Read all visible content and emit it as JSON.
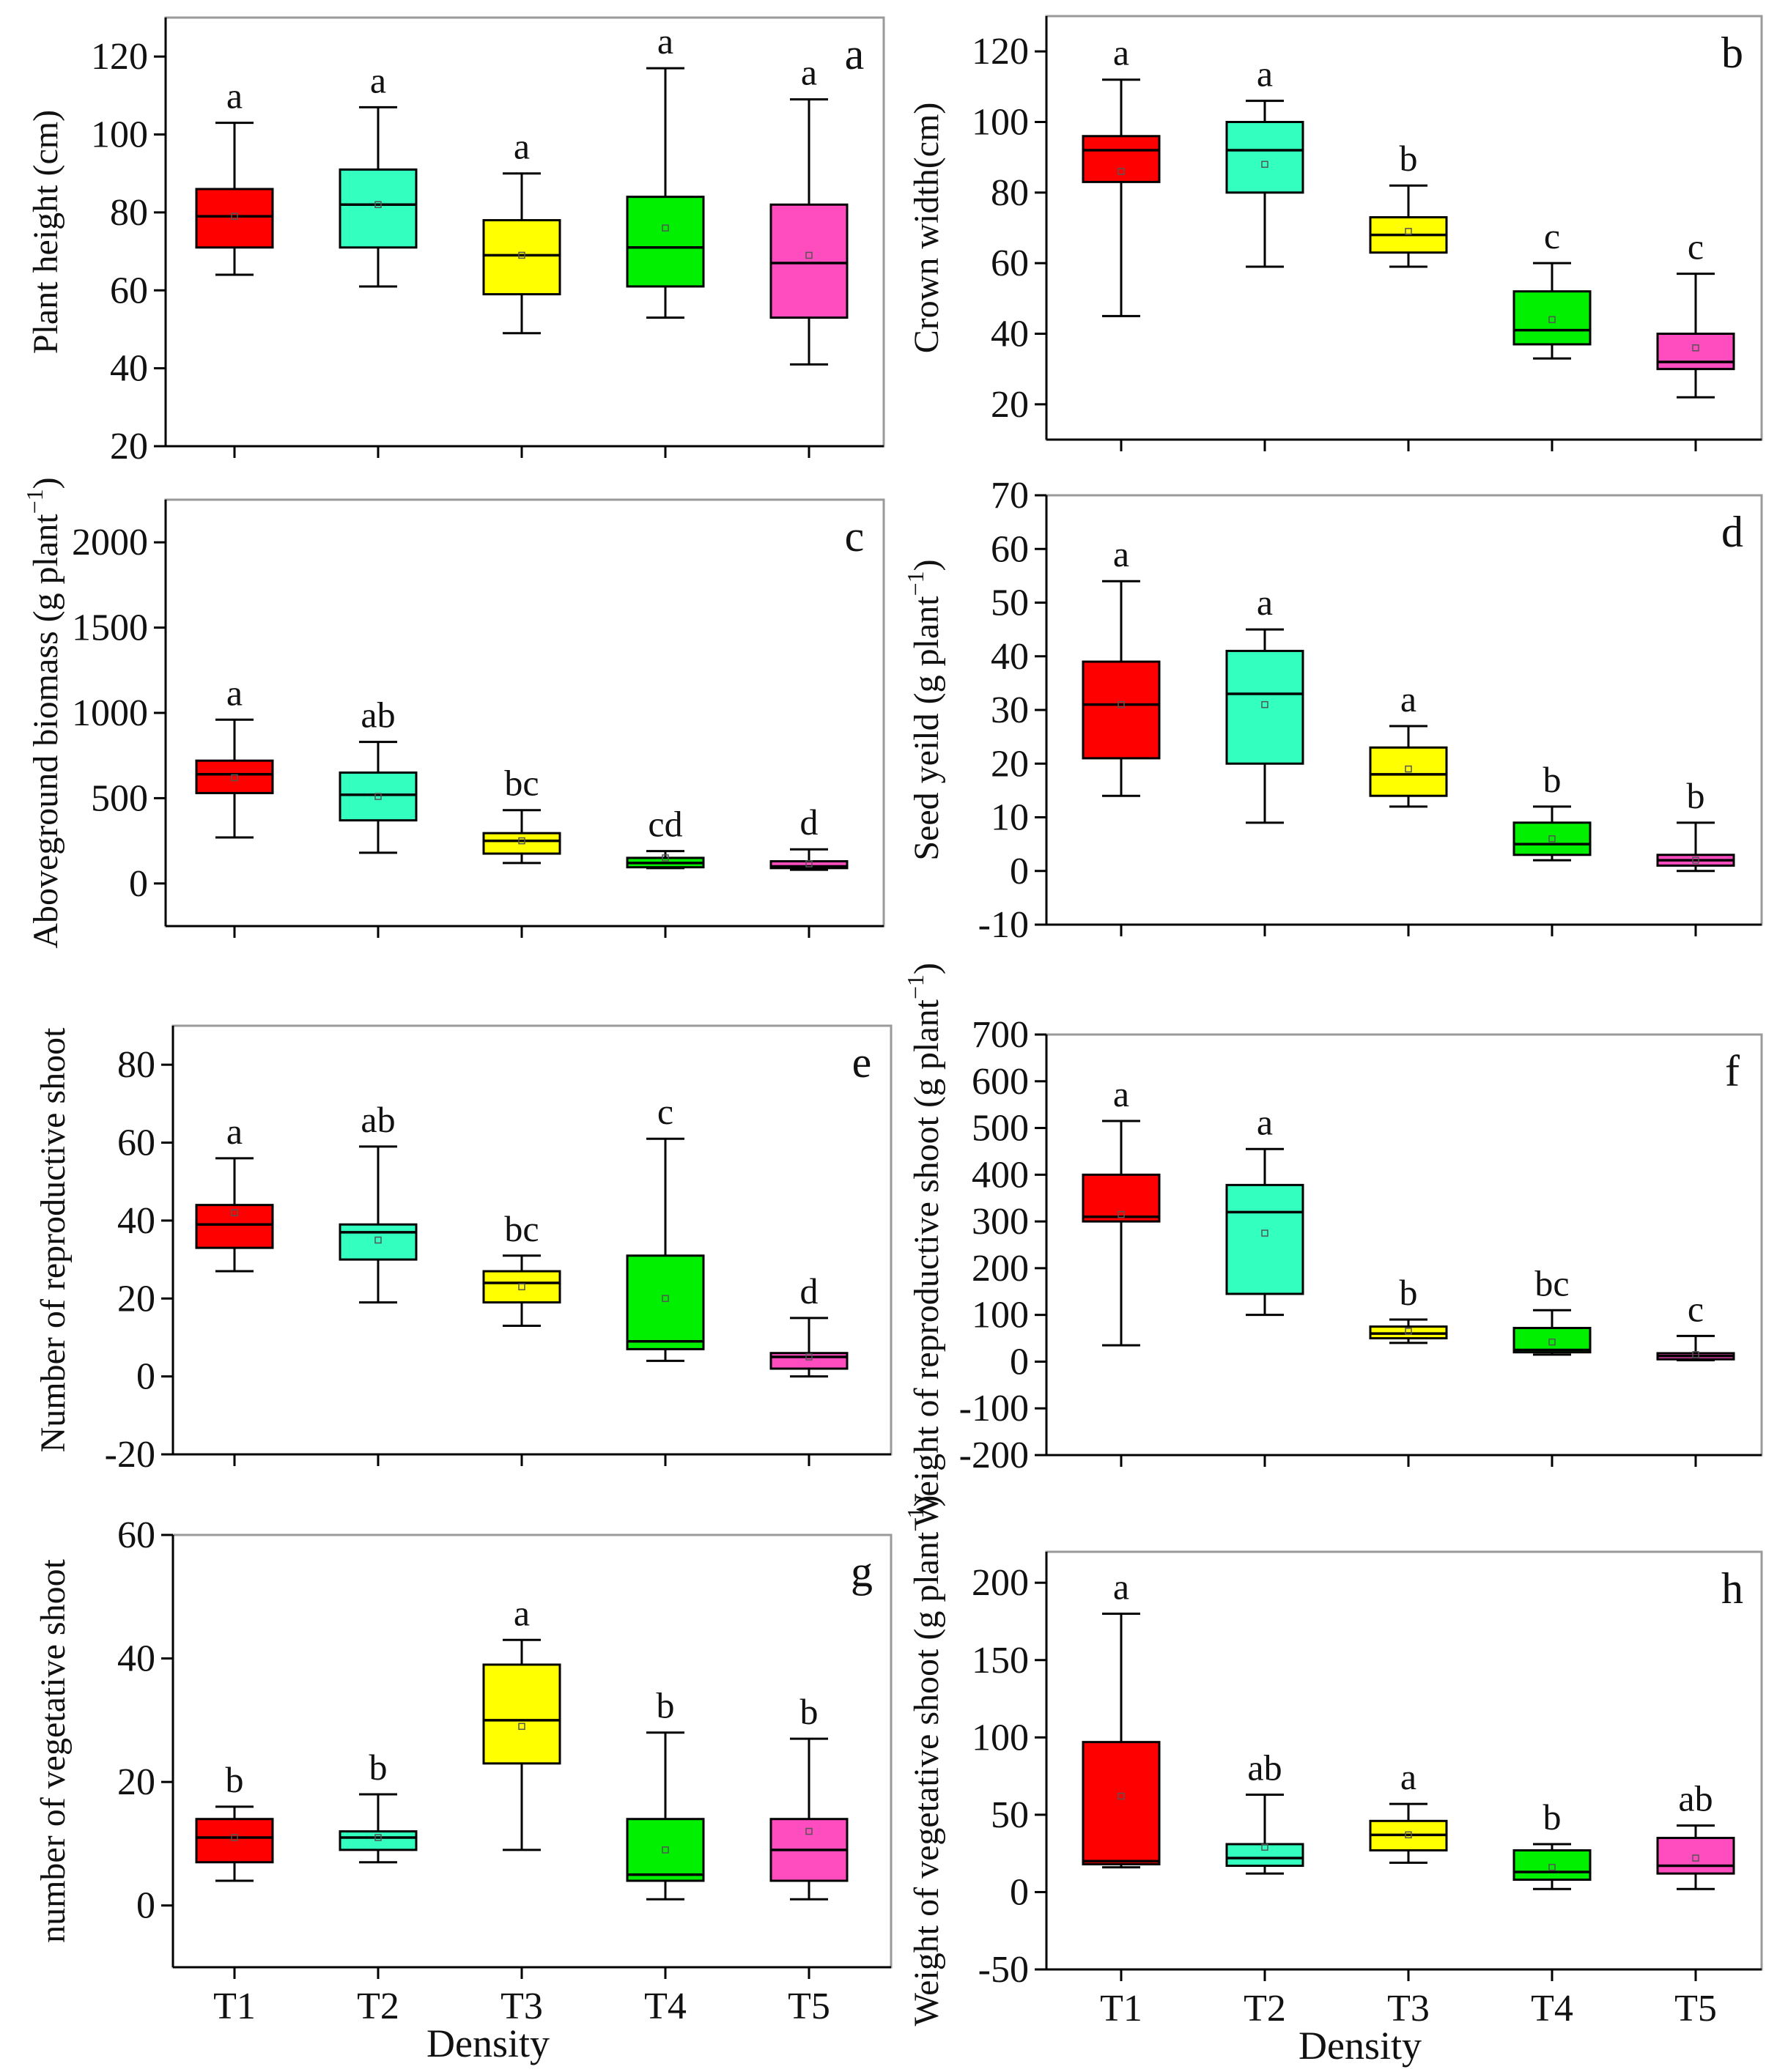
{
  "chart_data": [
    {
      "type": "box",
      "panel_label": "a",
      "ylabel": "Plant height (cm)",
      "ylim": [
        20,
        130
      ],
      "yticks": [
        20,
        40,
        60,
        80,
        100,
        120
      ],
      "categories": [
        "T1",
        "T2",
        "T3",
        "T4",
        "T5"
      ],
      "boxes": [
        {
          "min": 64,
          "q1": 71,
          "median": 79,
          "q3": 86,
          "max": 103,
          "mean": 79,
          "sig": "a"
        },
        {
          "min": 61,
          "q1": 71,
          "median": 82,
          "q3": 91,
          "max": 107,
          "mean": 82,
          "sig": "a"
        },
        {
          "min": 49,
          "q1": 59,
          "median": 69,
          "q3": 78,
          "max": 90,
          "mean": 69,
          "sig": "a"
        },
        {
          "min": 53,
          "q1": 61,
          "median": 71,
          "q3": 84,
          "max": 117,
          "mean": 76,
          "sig": "a"
        },
        {
          "min": 41,
          "q1": 53,
          "median": 67,
          "q3": 82,
          "max": 109,
          "mean": 69,
          "sig": "a"
        }
      ]
    },
    {
      "type": "box",
      "panel_label": "b",
      "ylabel": "Crown width(cm)",
      "ylim": [
        10,
        130
      ],
      "yticks": [
        20,
        40,
        60,
        80,
        100,
        120
      ],
      "categories": [
        "T1",
        "T2",
        "T3",
        "T4",
        "T5"
      ],
      "boxes": [
        {
          "min": 45,
          "q1": 83,
          "median": 92,
          "q3": 96,
          "max": 112,
          "mean": 86,
          "sig": "a"
        },
        {
          "min": 59,
          "q1": 80,
          "median": 92,
          "q3": 100,
          "max": 106,
          "mean": 88,
          "sig": "a"
        },
        {
          "min": 59,
          "q1": 63,
          "median": 68,
          "q3": 73,
          "max": 82,
          "mean": 69,
          "sig": "b"
        },
        {
          "min": 33,
          "q1": 37,
          "median": 41,
          "q3": 52,
          "max": 60,
          "mean": 44,
          "sig": "c"
        },
        {
          "min": 22,
          "q1": 30,
          "median": 32,
          "q3": 40,
          "max": 57,
          "mean": 36,
          "sig": "c"
        }
      ]
    },
    {
      "type": "box",
      "panel_label": "c",
      "ylabel": "Aboveground biomass (g plant",
      "ylabel_sup": "−1",
      "ylabel_end": ")",
      "ylim": [
        -250,
        2250
      ],
      "yticks": [
        0,
        500,
        1000,
        1500,
        2000
      ],
      "categories": [
        "T1",
        "T2",
        "T3",
        "T4",
        "T5"
      ],
      "boxes": [
        {
          "min": 270,
          "q1": 530,
          "median": 640,
          "q3": 720,
          "max": 960,
          "mean": 620,
          "sig": "a"
        },
        {
          "min": 180,
          "q1": 370,
          "median": 520,
          "q3": 650,
          "max": 830,
          "mean": 510,
          "sig": "ab"
        },
        {
          "min": 120,
          "q1": 175,
          "median": 250,
          "q3": 295,
          "max": 430,
          "mean": 250,
          "sig": "bc"
        },
        {
          "min": 90,
          "q1": 95,
          "median": 120,
          "q3": 150,
          "max": 190,
          "mean": 150,
          "sig": "cd"
        },
        {
          "min": 80,
          "q1": 90,
          "median": 100,
          "q3": 130,
          "max": 200,
          "mean": 115,
          "sig": "d"
        }
      ]
    },
    {
      "type": "box",
      "panel_label": "d",
      "ylabel": "Seed yeild (g plant",
      "ylabel_sup": "−1",
      "ylabel_end": ")",
      "ylim": [
        -10,
        70
      ],
      "yticks": [
        -10,
        0,
        10,
        20,
        30,
        40,
        50,
        60,
        70
      ],
      "categories": [
        "T1",
        "T2",
        "T3",
        "T4",
        "T5"
      ],
      "boxes": [
        {
          "min": 14,
          "q1": 21,
          "median": 31,
          "q3": 39,
          "max": 54,
          "mean": 31,
          "sig": "a"
        },
        {
          "min": 9,
          "q1": 20,
          "median": 33,
          "q3": 41,
          "max": 45,
          "mean": 31,
          "sig": "a"
        },
        {
          "min": 12,
          "q1": 14,
          "median": 18,
          "q3": 23,
          "max": 27,
          "mean": 19,
          "sig": "a"
        },
        {
          "min": 2,
          "q1": 3,
          "median": 5,
          "q3": 9,
          "max": 12,
          "mean": 6,
          "sig": "b"
        },
        {
          "min": 0,
          "q1": 1,
          "median": 2,
          "q3": 3,
          "max": 9,
          "mean": 2,
          "sig": "b"
        }
      ]
    },
    {
      "type": "box",
      "panel_label": "e",
      "ylabel": "Number  of reproductive shoot",
      "ylim": [
        -20,
        90
      ],
      "yticks": [
        -20,
        0,
        20,
        40,
        60,
        80
      ],
      "categories": [
        "T1",
        "T2",
        "T3",
        "T4",
        "T5"
      ],
      "boxes": [
        {
          "min": 27,
          "q1": 33,
          "median": 39,
          "q3": 44,
          "max": 56,
          "mean": 42,
          "sig": "a"
        },
        {
          "min": 19,
          "q1": 30,
          "median": 37,
          "q3": 39,
          "max": 59,
          "mean": 35,
          "sig": "ab"
        },
        {
          "min": 13,
          "q1": 19,
          "median": 24,
          "q3": 27,
          "max": 31,
          "mean": 23,
          "sig": "bc"
        },
        {
          "min": 4,
          "q1": 7,
          "median": 9,
          "q3": 31,
          "max": 61,
          "mean": 20,
          "sig": "c"
        },
        {
          "min": 0,
          "q1": 2,
          "median": 5,
          "q3": 6,
          "max": 15,
          "mean": 5,
          "sig": "d"
        }
      ]
    },
    {
      "type": "box",
      "panel_label": "f",
      "ylabel": "Weight  of reproductive shoot (g plant",
      "ylabel_sup": "−1",
      "ylabel_end": ")",
      "ylim": [
        -200,
        700
      ],
      "yticks": [
        -200,
        -100,
        0,
        100,
        200,
        300,
        400,
        500,
        600,
        700
      ],
      "categories": [
        "T1",
        "T2",
        "T3",
        "T4",
        "T5"
      ],
      "boxes": [
        {
          "min": 35,
          "q1": 300,
          "median": 310,
          "q3": 400,
          "max": 515,
          "mean": 315,
          "sig": "a"
        },
        {
          "min": 100,
          "q1": 145,
          "median": 320,
          "q3": 378,
          "max": 455,
          "mean": 275,
          "sig": "a"
        },
        {
          "min": 40,
          "q1": 50,
          "median": 60,
          "q3": 75,
          "max": 90,
          "mean": 65,
          "sig": "b"
        },
        {
          "min": 15,
          "q1": 20,
          "median": 25,
          "q3": 72,
          "max": 110,
          "mean": 42,
          "sig": "bc"
        },
        {
          "min": 3,
          "q1": 5,
          "median": 12,
          "q3": 18,
          "max": 55,
          "mean": 15,
          "sig": "c"
        }
      ]
    },
    {
      "type": "box",
      "panel_label": "g",
      "ylabel": "number  of vegetative shoot",
      "xlabel": "Density",
      "ylim": [
        -10,
        60
      ],
      "yticks": [
        0,
        20,
        40,
        60
      ],
      "categories": [
        "T1",
        "T2",
        "T3",
        "T4",
        "T5"
      ],
      "boxes": [
        {
          "min": 4,
          "q1": 7,
          "median": 11,
          "q3": 14,
          "max": 16,
          "mean": 11,
          "sig": "b"
        },
        {
          "min": 7,
          "q1": 9,
          "median": 11,
          "q3": 12,
          "max": 18,
          "mean": 11,
          "sig": "b"
        },
        {
          "min": 9,
          "q1": 23,
          "median": 30,
          "q3": 39,
          "max": 43,
          "mean": 29,
          "sig": "a"
        },
        {
          "min": 1,
          "q1": 4,
          "median": 5,
          "q3": 14,
          "max": 28,
          "mean": 9,
          "sig": "b"
        },
        {
          "min": 1,
          "q1": 4,
          "median": 9,
          "q3": 14,
          "max": 27,
          "mean": 12,
          "sig": "b"
        }
      ]
    },
    {
      "type": "box",
      "panel_label": "h",
      "ylabel": "Weight of vegetative shoot (g plant",
      "ylabel_sup": "−1",
      "ylabel_end": ")",
      "xlabel": "Density",
      "ylim": [
        -50,
        220
      ],
      "yticks": [
        -50,
        0,
        50,
        100,
        150,
        200
      ],
      "categories": [
        "T1",
        "T2",
        "T3",
        "T4",
        "T5"
      ],
      "boxes": [
        {
          "min": 16,
          "q1": 18,
          "median": 20,
          "q3": 97,
          "max": 180,
          "mean": 62,
          "sig": "a"
        },
        {
          "min": 12,
          "q1": 17,
          "median": 22,
          "q3": 31,
          "max": 63,
          "mean": 29,
          "sig": "ab"
        },
        {
          "min": 19,
          "q1": 27,
          "median": 37,
          "q3": 46,
          "max": 57,
          "mean": 37,
          "sig": "a"
        },
        {
          "min": 2,
          "q1": 8,
          "median": 13,
          "q3": 27,
          "max": 31,
          "mean": 16,
          "sig": "b"
        },
        {
          "min": 2,
          "q1": 12,
          "median": 17,
          "q3": 35,
          "max": 43,
          "mean": 22,
          "sig": "ab"
        }
      ]
    }
  ],
  "colors": {
    "T1": "#ff0000",
    "T2": "#33ffbf",
    "T3": "#ffff00",
    "T4": "#00f000",
    "T5": "#ff4dc0",
    "frame": "#9a9a9a",
    "ink": "#000000"
  }
}
